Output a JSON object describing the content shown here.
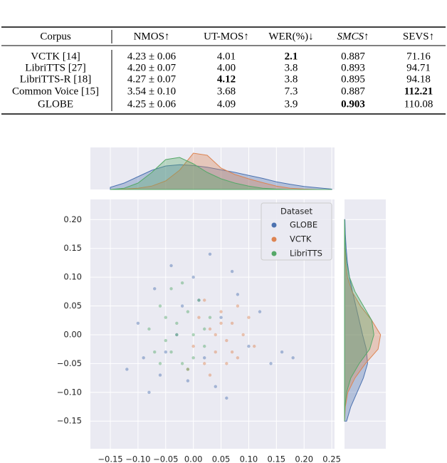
{
  "table": {
    "header": [
      "Corpus",
      "NMOS↑",
      "UT-MOS↑",
      "WER(%)↓",
      "SMCS↑",
      "SEVS↑"
    ],
    "rows": [
      [
        "VCTK [14]",
        "4.23 ± 0.06",
        "4.01",
        "2.1",
        "0.887",
        "71.16"
      ],
      [
        "LibriTTS [27]",
        "4.20 ± 0.07",
        "4.00",
        "3.8",
        "0.893",
        "94.71"
      ],
      [
        "LibriTTS-R [18]",
        "4.27 ± 0.07",
        "4.12",
        "3.8",
        "0.895",
        "94.18"
      ],
      [
        "Common Voice [15]",
        "3.54 ± 0.10",
        "3.68",
        "7.3",
        "0.887",
        "112.21"
      ],
      [
        "GLOBE",
        "4.25 ± 0.06",
        "4.09",
        "3.9",
        "0.903",
        "110.08"
      ]
    ],
    "bold": [
      [
        0,
        3
      ],
      [
        2,
        2
      ],
      [
        3,
        5
      ],
      [
        4,
        4
      ]
    ],
    "italic_header": [
      4
    ]
  },
  "chart_data": {
    "type": "jointplot",
    "legend_title": "Dataset",
    "legend_loc": "upper right",
    "xlim": [
      -0.186,
      0.255
    ],
    "ylim": [
      -0.198,
      0.235
    ],
    "xticks": [
      {
        "value": -0.15,
        "label": "−0.15"
      },
      {
        "value": -0.1,
        "label": "−0.10"
      },
      {
        "value": -0.05,
        "label": "−0.05"
      },
      {
        "value": 0,
        "label": "0.00"
      },
      {
        "value": 0.05,
        "label": "0.05"
      },
      {
        "value": 0.1,
        "label": "0.10"
      },
      {
        "value": 0.15,
        "label": "0.15"
      },
      {
        "value": 0.2,
        "label": "0.20"
      },
      {
        "value": 0.25,
        "label": "0.25"
      }
    ],
    "yticks": [
      {
        "value": 0.2,
        "label": "0.20"
      },
      {
        "value": 0.15,
        "label": "0.15"
      },
      {
        "value": 0.1,
        "label": "0.10"
      },
      {
        "value": 0.05,
        "label": "0.05"
      },
      {
        "value": 0,
        "label": "0.00"
      },
      {
        "value": -0.05,
        "label": "−0.05"
      },
      {
        "value": -0.1,
        "label": "−0.10"
      },
      {
        "value": -0.15,
        "label": "−0.15"
      }
    ],
    "grid": true,
    "kde_x": [
      -0.15,
      -0.125,
      -0.1,
      -0.075,
      -0.05,
      -0.025,
      0,
      0.025,
      0.05,
      0.075,
      0.1,
      0.125,
      0.15,
      0.175,
      0.2,
      0.225,
      0.25
    ],
    "kde_y": [
      -0.15,
      -0.125,
      -0.1,
      -0.075,
      -0.05,
      -0.025,
      0,
      0.025,
      0.05,
      0.075,
      0.1,
      0.125,
      0.15,
      0.175,
      0.2
    ],
    "density_lim": [
      0,
      9.5
    ],
    "series": [
      {
        "name": "GLOBE",
        "color": "#4c72b0",
        "x": [
          -0.12,
          -0.1,
          -0.08,
          -0.07,
          -0.05,
          -0.04,
          -0.02,
          -0.01,
          0.0,
          0.02,
          0.03,
          0.05,
          0.06,
          0.08,
          0.1,
          0.12,
          0.14,
          0.16,
          0.18,
          -0.06,
          -0.03,
          0.01,
          0.04,
          -0.09,
          0.07
        ],
        "y": [
          -0.06,
          0.02,
          -0.1,
          0.08,
          -0.03,
          0.12,
          0.05,
          -0.08,
          0.1,
          -0.04,
          0.14,
          0.03,
          -0.11,
          0.07,
          -0.02,
          0.04,
          -0.05,
          -0.03,
          -0.04,
          -0.07,
          0.0,
          0.06,
          -0.09,
          -0.04,
          0.11
        ],
        "kde_top": [
          0.5,
          1.5,
          3,
          4.5,
          5.5,
          5.8,
          5.6,
          5.2,
          4.6,
          4,
          3.3,
          2.6,
          1.8,
          1.2,
          0.7,
          0.4,
          0.1
        ],
        "kde_right": [
          0.5,
          1.5,
          3,
          4.5,
          5.5,
          5.2,
          4.3,
          3.5,
          2.7,
          1.9,
          1.2,
          0.7,
          0.4,
          0.2,
          0.1
        ]
      },
      {
        "name": "VCTK",
        "color": "#dd8452",
        "x": [
          0.0,
          0.01,
          0.02,
          0.03,
          0.04,
          0.05,
          0.06,
          0.07,
          0.08,
          0.09,
          0.1,
          0.11,
          -0.01,
          0.02,
          0.04,
          0.06,
          0.08,
          0.03,
          0.05,
          0.07
        ],
        "y": [
          -0.02,
          0.03,
          -0.05,
          0.01,
          -0.03,
          0.04,
          -0.01,
          0.02,
          -0.04,
          0.0,
          0.03,
          -0.02,
          -0.06,
          0.06,
          0.0,
          -0.05,
          0.05,
          -0.07,
          0.02,
          -0.03
        ],
        "kde_top": [
          0,
          0.1,
          0.3,
          0.8,
          2,
          4.5,
          8.5,
          8,
          5,
          3.5,
          2.5,
          1.6,
          0.8,
          0.3,
          0.1,
          0,
          0
        ],
        "kde_right": [
          0,
          0.2,
          0.8,
          2.5,
          5,
          8,
          8.6,
          6.5,
          3.8,
          1.8,
          0.7,
          0.2,
          0.1,
          0,
          0
        ]
      },
      {
        "name": "LibriTTS",
        "color": "#55a868",
        "x": [
          -0.08,
          -0.07,
          -0.06,
          -0.05,
          -0.04,
          -0.03,
          -0.02,
          -0.01,
          0.0,
          0.01,
          0.02,
          0.03,
          -0.06,
          -0.04,
          -0.02,
          0.0,
          0.02,
          -0.05,
          -0.03,
          -0.01
        ],
        "y": [
          0.01,
          -0.03,
          0.05,
          -0.01,
          0.08,
          0.02,
          -0.05,
          0.04,
          0.0,
          0.06,
          -0.02,
          0.03,
          -0.05,
          -0.03,
          0.09,
          -0.04,
          0.01,
          0.03,
          0.0,
          -0.06
        ],
        "kde_top": [
          0,
          0.3,
          1.5,
          4,
          7,
          7.5,
          6,
          4,
          2.5,
          1.5,
          0.8,
          0.3,
          0.1,
          0,
          0,
          0,
          0
        ],
        "kde_right": [
          0,
          0.1,
          0.5,
          1.5,
          3.5,
          6,
          7,
          6.5,
          4.5,
          2.5,
          1.2,
          0.5,
          0.2,
          0.1,
          0
        ]
      }
    ]
  }
}
